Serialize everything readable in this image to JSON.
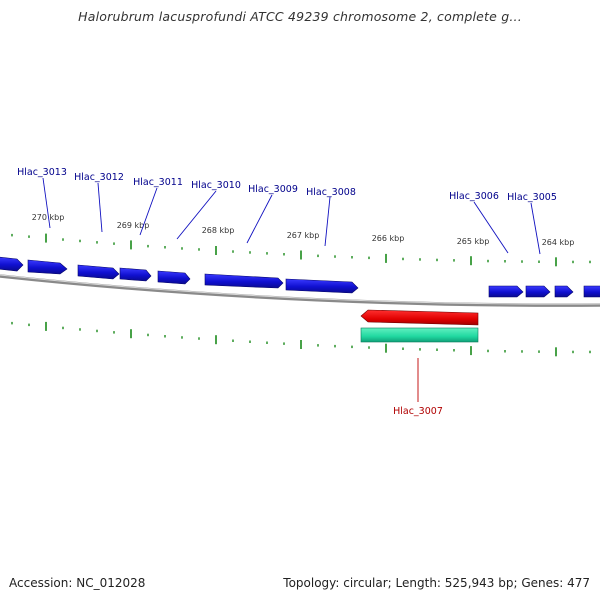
{
  "header": {
    "title": "Halorubrum lacusprofundi ATCC 49239 chromosome 2, complete g..."
  },
  "footer": {
    "accession": "Accession: NC_012028",
    "summary": "Topology: circular; Length: 525,943 bp; Genes: 477"
  },
  "scale_labels": [
    "270 kbp",
    "269 kbp",
    "268 kbp",
    "267 kbp",
    "266 kbp",
    "265 kbp",
    "264 kbp"
  ],
  "genes": {
    "forward_labeled": [
      "Hlac_3013",
      "Hlac_3012",
      "Hlac_3011",
      "Hlac_3010",
      "Hlac_3009",
      "Hlac_3008",
      "Hlac_3006",
      "Hlac_3005"
    ],
    "reverse_labeled": [
      "Hlac_3007"
    ]
  },
  "colors": {
    "forward_gene": "#1010d0",
    "reverse_gene": "#e00000",
    "rna_feature": "#20d8a0",
    "tick": "#1a8a1a",
    "backbone": "#9a9a9a",
    "forward_label": "#00008b",
    "reverse_label": "#b00000"
  }
}
